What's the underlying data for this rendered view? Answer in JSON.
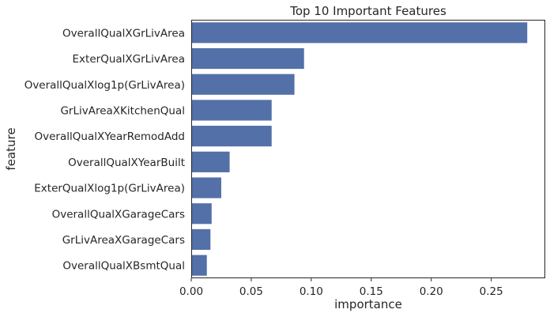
{
  "chart_data": {
    "type": "bar",
    "orientation": "horizontal",
    "title": "Top 10 Important Features",
    "xlabel": "importance",
    "ylabel": "feature",
    "categories": [
      "OverallQualXGrLivArea",
      "ExterQualXGrLivArea",
      "OverallQualXlog1p(GrLivArea)",
      "GrLivAreaXKitchenQual",
      "OverallQualXYearRemodAdd",
      "OverallQualXYearBuilt",
      "ExterQualXlog1p(GrLivArea)",
      "OverallQualXGarageCars",
      "GrLivAreaXGarageCars",
      "OverallQualXBsmtQual"
    ],
    "values": [
      0.28,
      0.094,
      0.086,
      0.067,
      0.067,
      0.032,
      0.025,
      0.017,
      0.016,
      0.013
    ],
    "xlim": [
      0,
      0.295
    ],
    "xticks": [
      0.0,
      0.05,
      0.1,
      0.15,
      0.2,
      0.25
    ],
    "xtick_labels": [
      "0.00",
      "0.05",
      "0.10",
      "0.15",
      "0.20",
      "0.25"
    ],
    "grid": false,
    "bar_color": "#5470a8"
  }
}
